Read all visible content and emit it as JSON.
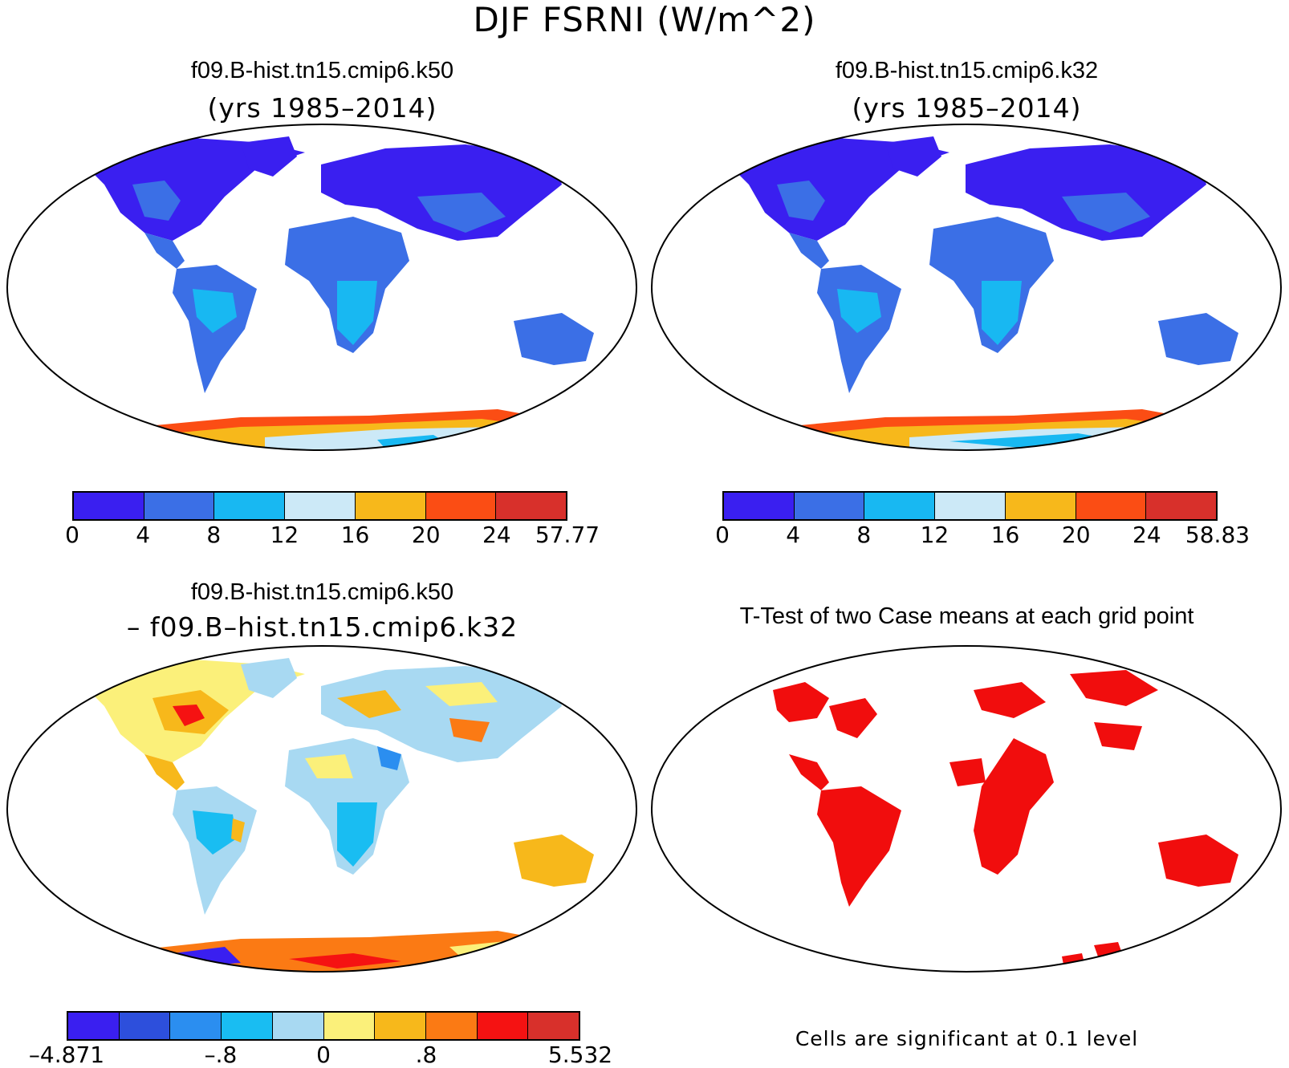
{
  "figure": {
    "title": "DJF FSRNI (W/m^2)"
  },
  "panels": [
    {
      "title": "f09.B-hist.tn15.cmip6.k50",
      "subtitle": "(yrs 1985–2014)",
      "colorbar": {
        "colors": [
          "#3a1ff0",
          "#3b6fe6",
          "#18b8f2",
          "#cce9f7",
          "#f7b81b",
          "#fb4d14",
          "#d8302b"
        ],
        "tick_labels": [
          "0",
          "4",
          "8",
          "12",
          "16",
          "20",
          "24",
          "57.77"
        ]
      }
    },
    {
      "title": "f09.B-hist.tn15.cmip6.k32",
      "subtitle": "(yrs 1985–2014)",
      "colorbar": {
        "colors": [
          "#3a1ff0",
          "#3b6fe6",
          "#18b8f2",
          "#cce9f7",
          "#f7b81b",
          "#fb4d14",
          "#d8302b"
        ],
        "tick_labels": [
          "0",
          "4",
          "8",
          "12",
          "16",
          "20",
          "24",
          "58.83"
        ]
      }
    },
    {
      "title": "f09.B-hist.tn15.cmip6.k50",
      "subtitle": "– f09.B–hist.tn15.cmip6.k32",
      "colorbar": {
        "colors": [
          "#3a1ff0",
          "#2d4fdc",
          "#2b8ef0",
          "#19bdf2",
          "#a8d9f2",
          "#fbf07a",
          "#f7b81b",
          "#fb7a14",
          "#f51212",
          "#d8302b"
        ],
        "tick_labels": [
          "–4.871",
          "–.8",
          "0",
          ".8",
          "5.532"
        ]
      }
    },
    {
      "title": "T-Test of two Case means at each grid point",
      "note": "Cells are significant at 0.1 level",
      "significant_color": "#f10d0d"
    }
  ]
}
